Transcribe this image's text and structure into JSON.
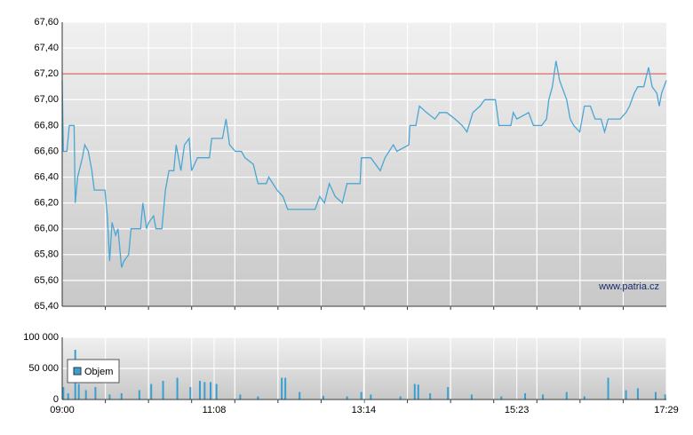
{
  "chart_data": [
    {
      "type": "line",
      "x": [
        "09:00",
        "09:01",
        "09:04",
        "09:06",
        "09:10",
        "09:11",
        "09:13",
        "09:17",
        "09:19",
        "09:22",
        "09:25",
        "09:27",
        "09:36",
        "09:38",
        "09:40",
        "09:42",
        "09:45",
        "09:47",
        "09:50",
        "09:52",
        "09:56",
        "09:58",
        "10:06",
        "10:08",
        "10:11",
        "10:13",
        "10:17",
        "10:19",
        "10:24",
        "10:27",
        "10:30",
        "10:34",
        "10:36",
        "10:40",
        "10:43",
        "10:47",
        "10:49",
        "10:54",
        "11:04",
        "11:06",
        "11:15",
        "11:18",
        "11:21",
        "11:26",
        "11:31",
        "11:34",
        "11:41",
        "11:45",
        "11:52",
        "11:54",
        "12:01",
        "12:06",
        "12:10",
        "12:33",
        "12:37",
        "12:41",
        "12:45",
        "12:50",
        "12:56",
        "13:00",
        "13:11",
        "13:12",
        "13:16",
        "13:20",
        "13:28",
        "13:32",
        "13:39",
        "13:42",
        "13:52",
        "13:53",
        "13:58",
        "14:01",
        "14:07",
        "14:14",
        "14:18",
        "14:24",
        "14:31",
        "14:37",
        "14:41",
        "14:46",
        "14:52",
        "14:56",
        "15:05",
        "15:08",
        "15:18",
        "15:20",
        "15:23",
        "15:33",
        "15:37",
        "15:44",
        "15:48",
        "15:50",
        "15:53",
        "15:56",
        "15:59",
        "16:05",
        "16:08",
        "16:11",
        "16:16",
        "16:20",
        "16:25",
        "16:29",
        "16:34",
        "16:37",
        "16:40",
        "16:44",
        "16:50",
        "16:55",
        "16:58",
        "17:02",
        "17:05",
        "17:10",
        "17:14",
        "17:17",
        "17:21",
        "17:23",
        "17:25",
        "17:29"
      ],
      "series": [
        {
          "color": "#4aa6d4",
          "values": [
            67.15,
            66.6,
            66.6,
            66.8,
            66.8,
            66.2,
            66.4,
            66.55,
            66.65,
            66.6,
            66.45,
            66.3,
            66.3,
            66.1,
            65.75,
            66.05,
            65.95,
            66.0,
            65.7,
            65.75,
            65.8,
            66.0,
            66.0,
            66.2,
            66.0,
            66.05,
            66.1,
            66.0,
            66.0,
            66.3,
            66.45,
            66.45,
            66.65,
            66.45,
            66.65,
            66.7,
            66.45,
            66.55,
            66.55,
            66.7,
            66.7,
            66.85,
            66.65,
            66.6,
            66.6,
            66.55,
            66.5,
            66.35,
            66.35,
            66.4,
            66.3,
            66.25,
            66.15,
            66.15,
            66.25,
            66.2,
            66.35,
            66.25,
            66.2,
            66.35,
            66.35,
            66.55,
            66.55,
            66.55,
            66.45,
            66.55,
            66.65,
            66.6,
            66.65,
            66.8,
            66.8,
            66.95,
            66.9,
            66.85,
            66.9,
            66.9,
            66.85,
            66.8,
            66.75,
            66.9,
            66.95,
            67.0,
            67.0,
            66.8,
            66.8,
            66.9,
            66.85,
            66.9,
            66.8,
            66.8,
            66.85,
            67.0,
            67.1,
            67.3,
            67.15,
            67.0,
            66.85,
            66.8,
            66.75,
            66.95,
            66.95,
            66.85,
            66.85,
            66.75,
            66.85,
            66.85,
            66.85,
            66.9,
            66.95,
            67.05,
            67.1,
            67.1,
            67.25,
            67.1,
            67.05,
            66.95,
            67.05,
            67.15
          ]
        }
      ],
      "xlim": [
        "09:00",
        "17:29"
      ],
      "ylim": [
        65.4,
        67.6
      ],
      "yticks": [
        {
          "value": 65.4,
          "label": "65,40"
        },
        {
          "value": 65.6,
          "label": "65,60"
        },
        {
          "value": 65.8,
          "label": "65,80"
        },
        {
          "value": 66.0,
          "label": "66,00"
        },
        {
          "value": 66.2,
          "label": "66,20"
        },
        {
          "value": 66.4,
          "label": "66,40"
        },
        {
          "value": 66.6,
          "label": "66,60"
        },
        {
          "value": 66.8,
          "label": "66,80"
        },
        {
          "value": 67.0,
          "label": "67,00"
        },
        {
          "value": 67.2,
          "label": "67,20"
        },
        {
          "value": 67.4,
          "label": "67,40"
        },
        {
          "value": 67.6,
          "label": "67,60"
        }
      ],
      "reference_line": {
        "value": 67.2,
        "color": "#d04545"
      },
      "annotation": "www.patria.cz",
      "grid": true
    },
    {
      "type": "bar",
      "x": [
        "09:01",
        "09:05",
        "09:11",
        "09:14",
        "09:20",
        "09:28",
        "09:40",
        "09:50",
        "10:05",
        "10:15",
        "10:25",
        "10:37",
        "10:48",
        "10:56",
        "11:00",
        "11:05",
        "11:10",
        "11:30",
        "11:45",
        "12:05",
        "12:08",
        "12:20",
        "12:40",
        "13:00",
        "13:12",
        "13:20",
        "13:45",
        "13:57",
        "14:00",
        "14:10",
        "14:25",
        "14:45",
        "15:10",
        "15:30",
        "15:45",
        "16:05",
        "16:20",
        "16:40",
        "16:55",
        "17:05",
        "17:20",
        "17:28"
      ],
      "series": [
        {
          "name": "Objem",
          "color": "#3a9fd0",
          "values": [
            20000,
            10000,
            80000,
            25000,
            15000,
            20000,
            8000,
            10000,
            15000,
            25000,
            30000,
            35000,
            20000,
            30000,
            28000,
            28000,
            25000,
            8000,
            5000,
            35000,
            35000,
            12000,
            6000,
            5000,
            12000,
            8000,
            5000,
            25000,
            24000,
            10000,
            20000,
            8000,
            5000,
            10000,
            8000,
            12000,
            5000,
            35000,
            15000,
            18000,
            12000,
            8000
          ]
        }
      ],
      "xlim": [
        "09:00",
        "17:29"
      ],
      "xticks": [
        "09:00",
        "11:08",
        "13:14",
        "15:23",
        "17:29"
      ],
      "ylim": [
        0,
        100000
      ],
      "yticks": [
        0,
        {
          "value": 50000,
          "label": "50 000"
        },
        {
          "value": 100000,
          "label": "100 000"
        }
      ],
      "grid": true
    }
  ]
}
